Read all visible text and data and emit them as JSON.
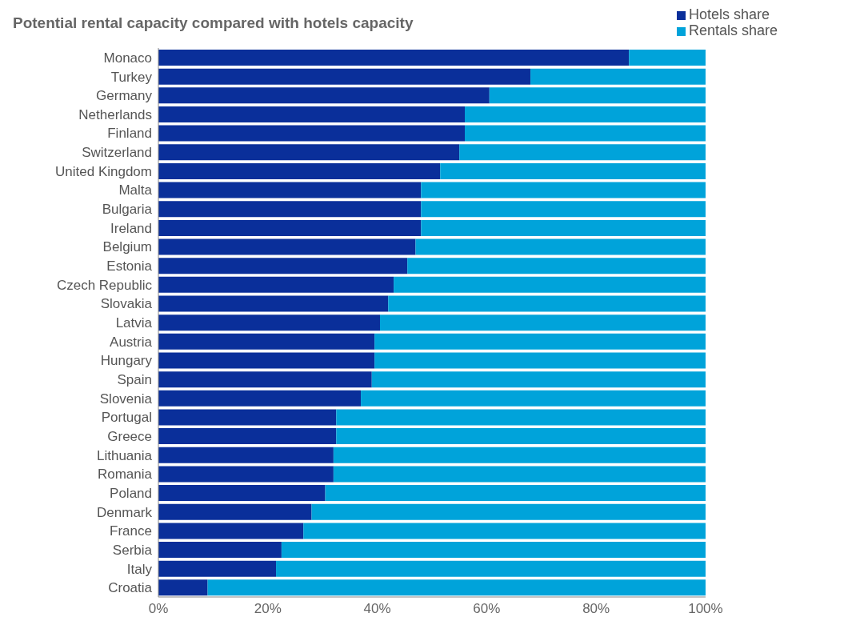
{
  "chart_data": {
    "type": "bar",
    "orientation": "horizontal",
    "stacked": true,
    "title": "Potential rental capacity compared with hotels capacity",
    "categories": [
      "Monaco",
      "Turkey",
      "Germany",
      "Netherlands",
      "Finland",
      "Switzerland",
      "United Kingdom",
      "Malta",
      "Bulgaria",
      "Ireland",
      "Belgium",
      "Estonia",
      "Czech Republic",
      "Slovakia",
      "Latvia",
      "Austria",
      "Hungary",
      "Spain",
      "Slovenia",
      "Portugal",
      "Greece",
      "Lithuania",
      "Romania",
      "Poland",
      "Denmark",
      "France",
      "Serbia",
      "Italy",
      "Croatia"
    ],
    "series": [
      {
        "name": "Hotels share",
        "color": "#0a2f9a",
        "values": [
          86,
          68,
          60.5,
          56,
          56,
          55,
          51.5,
          48,
          48,
          48,
          47,
          45.5,
          43,
          42,
          40.5,
          39.5,
          39.5,
          39,
          37,
          32.5,
          32.5,
          32,
          32,
          30.5,
          28,
          26.5,
          22.5,
          21.5,
          9
        ]
      },
      {
        "name": "Rentals share",
        "color": "#00a3da",
        "values": [
          14,
          32,
          39.5,
          44,
          44,
          45,
          48.5,
          52,
          52,
          52,
          53,
          54.5,
          57,
          58,
          59.5,
          60.5,
          60.5,
          61,
          63,
          67.5,
          67.5,
          68,
          68,
          69.5,
          72,
          73.5,
          77.5,
          78.5,
          91
        ]
      }
    ],
    "xlim": [
      0,
      100
    ],
    "xticks": [
      {
        "value": 0,
        "label": "0%"
      },
      {
        "value": 20,
        "label": "20%"
      },
      {
        "value": 40,
        "label": "40%"
      },
      {
        "value": 60,
        "label": "60%"
      },
      {
        "value": 80,
        "label": "80%"
      },
      {
        "value": 100,
        "label": "100%"
      }
    ],
    "legend": "top right"
  }
}
